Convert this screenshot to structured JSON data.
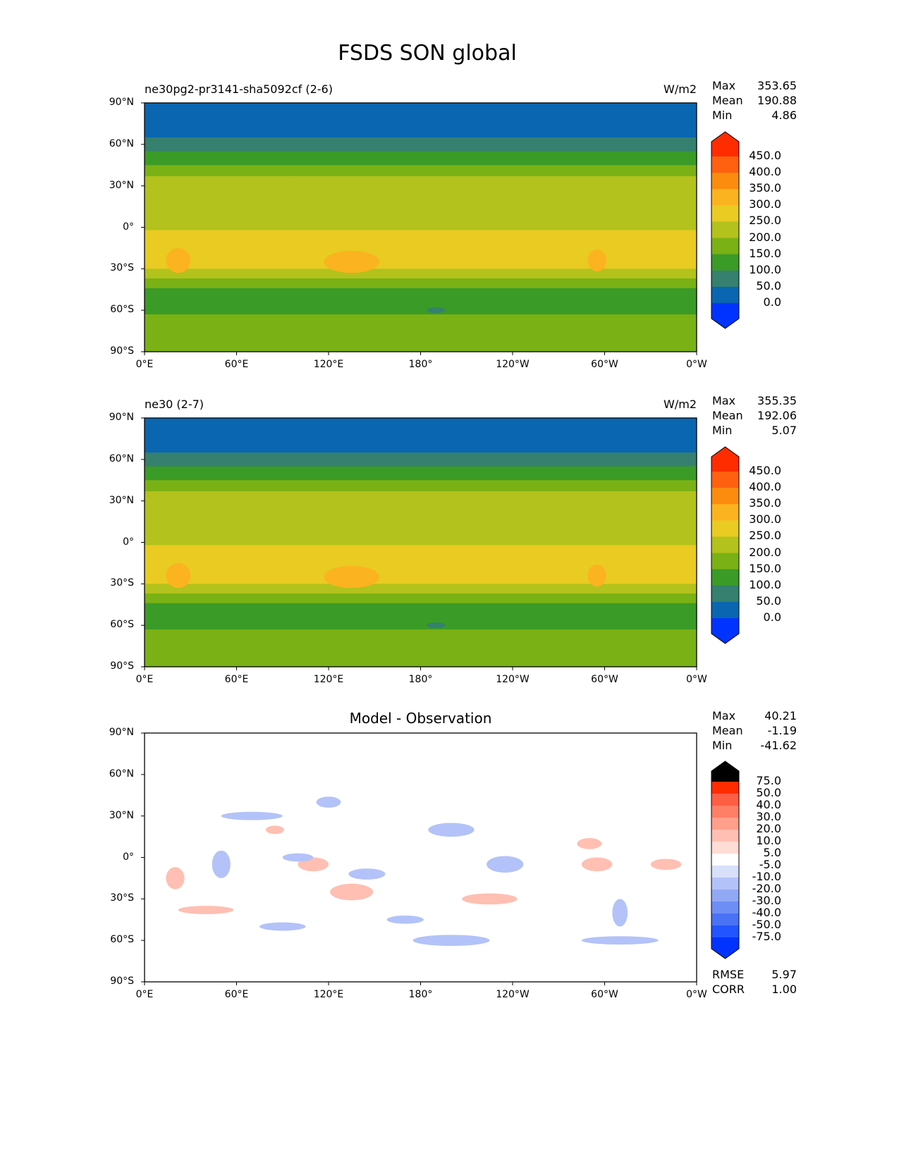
{
  "title": "FSDS SON global",
  "chart_data": [
    {
      "type": "heatmap",
      "title": "ne30pg2-pr3141-sha5092cf (2-6)",
      "units": "W/m2",
      "stats": {
        "max_label": "Max",
        "max": "353.65",
        "mean_label": "Mean",
        "mean": "190.88",
        "min_label": "Min",
        "min": "4.86"
      },
      "xlim": [
        0,
        360
      ],
      "ylim": [
        -90,
        90
      ],
      "xticks": [
        "0°E",
        "60°E",
        "120°E",
        "180°",
        "120°W",
        "60°W",
        "0°W"
      ],
      "yticks": [
        "90°N",
        "60°N",
        "30°N",
        "0°",
        "30°S",
        "60°S",
        "90°S"
      ],
      "levels": [
        "0.0",
        "50.0",
        "100.0",
        "150.0",
        "200.0",
        "250.0",
        "300.0",
        "350.0",
        "400.0",
        "450.0"
      ],
      "colors": [
        "#0033ff",
        "#0a66b0",
        "#35806e",
        "#3b9b27",
        "#7ab114",
        "#b3c21c",
        "#e9cb22",
        "#fbb31f",
        "#fc8c0d",
        "#ff6110",
        "#ff2c00"
      ],
      "zonal": [
        [
          90,
          65,
          20
        ],
        [
          65,
          55,
          75
        ],
        [
          55,
          45,
          125
        ],
        [
          45,
          37,
          175
        ],
        [
          37,
          8,
          225
        ],
        [
          8,
          -2,
          225
        ],
        [
          -2,
          -30,
          275
        ],
        [
          -30,
          -37,
          225
        ],
        [
          -37,
          -44,
          175
        ],
        [
          -44,
          -63,
          125
        ],
        [
          -63,
          -72,
          175
        ],
        [
          -72,
          -90,
          175
        ]
      ],
      "blobs": [
        [
          135,
          -25,
          325,
          18,
          8
        ],
        [
          22,
          -24,
          325,
          8,
          9
        ],
        [
          295,
          -24,
          325,
          6,
          8
        ],
        [
          115,
          30,
          225,
          20,
          6
        ],
        [
          190,
          -60,
          75,
          6,
          2
        ],
        [
          150,
          -10,
          275,
          30,
          6
        ]
      ]
    },
    {
      "type": "heatmap",
      "title": "ne30 (2-7)",
      "units": "W/m2",
      "stats": {
        "max_label": "Max",
        "max": "355.35",
        "mean_label": "Mean",
        "mean": "192.06",
        "min_label": "Min",
        "min": "5.07"
      },
      "xlim": [
        0,
        360
      ],
      "ylim": [
        -90,
        90
      ],
      "xticks": [
        "0°E",
        "60°E",
        "120°E",
        "180°",
        "120°W",
        "60°W",
        "0°W"
      ],
      "yticks": [
        "90°N",
        "60°N",
        "30°N",
        "0°",
        "30°S",
        "60°S",
        "90°S"
      ],
      "levels": [
        "0.0",
        "50.0",
        "100.0",
        "150.0",
        "200.0",
        "250.0",
        "300.0",
        "350.0",
        "400.0",
        "450.0"
      ],
      "colors": [
        "#0033ff",
        "#0a66b0",
        "#35806e",
        "#3b9b27",
        "#7ab114",
        "#b3c21c",
        "#e9cb22",
        "#fbb31f",
        "#fc8c0d",
        "#ff6110",
        "#ff2c00"
      ],
      "zonal": [
        [
          90,
          65,
          20
        ],
        [
          65,
          55,
          75
        ],
        [
          55,
          45,
          125
        ],
        [
          45,
          37,
          175
        ],
        [
          37,
          8,
          225
        ],
        [
          8,
          -2,
          225
        ],
        [
          -2,
          -30,
          275
        ],
        [
          -30,
          -37,
          225
        ],
        [
          -37,
          -44,
          175
        ],
        [
          -44,
          -63,
          125
        ],
        [
          -63,
          -72,
          175
        ],
        [
          -72,
          -90,
          175
        ]
      ],
      "blobs": [
        [
          135,
          -25,
          325,
          18,
          8
        ],
        [
          22,
          -24,
          325,
          8,
          9
        ],
        [
          295,
          -24,
          325,
          6,
          8
        ],
        [
          115,
          30,
          225,
          20,
          6
        ],
        [
          190,
          -60,
          75,
          6,
          2
        ],
        [
          150,
          -10,
          275,
          30,
          6
        ]
      ]
    },
    {
      "type": "heatmap",
      "title": "Model - Observation",
      "units": "",
      "stats": {
        "max_label": "Max",
        "max": "40.21",
        "mean_label": "Mean",
        "mean": "-1.19",
        "min_label": "Min",
        "min": "-41.62"
      },
      "extra_stats": {
        "rmse_label": "RMSE",
        "rmse": "5.97",
        "corr_label": "CORR",
        "corr": "1.00"
      },
      "xlim": [
        0,
        360
      ],
      "ylim": [
        -90,
        90
      ],
      "xticks": [
        "0°E",
        "60°E",
        "120°E",
        "180°",
        "120°W",
        "60°W",
        "0°W"
      ],
      "yticks": [
        "90°N",
        "60°N",
        "30°N",
        "0°",
        "30°S",
        "60°S",
        "90°S"
      ],
      "levels": [
        "-75.0",
        "-50.0",
        "-40.0",
        "-30.0",
        "-20.0",
        "-10.0",
        "-5.0",
        "5.0",
        "10.0",
        "20.0",
        "30.0",
        "40.0",
        "50.0",
        "75.0"
      ],
      "colors": [
        "#0033ff",
        "#2255ff",
        "#4a72f5",
        "#6d8ef5",
        "#91a8f5",
        "#b3c2f8",
        "#d8e0fa",
        "#ffffff",
        "#ffdcd6",
        "#ffbfb2",
        "#ff9f8c",
        "#ff7f66",
        "#ff5e44",
        "#ff2c00"
      ],
      "zonal": [
        [
          90,
          -90,
          0
        ]
      ],
      "blobs": [
        [
          135,
          -25,
          15,
          14,
          6
        ],
        [
          225,
          -30,
          15,
          18,
          4
        ],
        [
          295,
          -5,
          15,
          10,
          5
        ],
        [
          340,
          -5,
          15,
          10,
          4
        ],
        [
          110,
          -5,
          15,
          10,
          5
        ],
        [
          40,
          -38,
          15,
          18,
          3
        ],
        [
          20,
          -15,
          15,
          6,
          8
        ],
        [
          50,
          -5,
          -15,
          6,
          10
        ],
        [
          100,
          0,
          -15,
          10,
          3
        ],
        [
          200,
          20,
          -15,
          15,
          5
        ],
        [
          235,
          -5,
          -15,
          12,
          6
        ],
        [
          310,
          -40,
          -15,
          5,
          10
        ],
        [
          90,
          -50,
          -15,
          15,
          3
        ],
        [
          200,
          -60,
          -15,
          25,
          4
        ],
        [
          310,
          -60,
          -15,
          25,
          3
        ],
        [
          120,
          40,
          -15,
          8,
          4
        ],
        [
          145,
          -12,
          -15,
          12,
          4
        ],
        [
          85,
          20,
          15,
          6,
          3
        ],
        [
          290,
          10,
          15,
          8,
          4
        ],
        [
          70,
          30,
          -15,
          20,
          3
        ],
        [
          170,
          -45,
          -15,
          12,
          3
        ]
      ]
    }
  ]
}
